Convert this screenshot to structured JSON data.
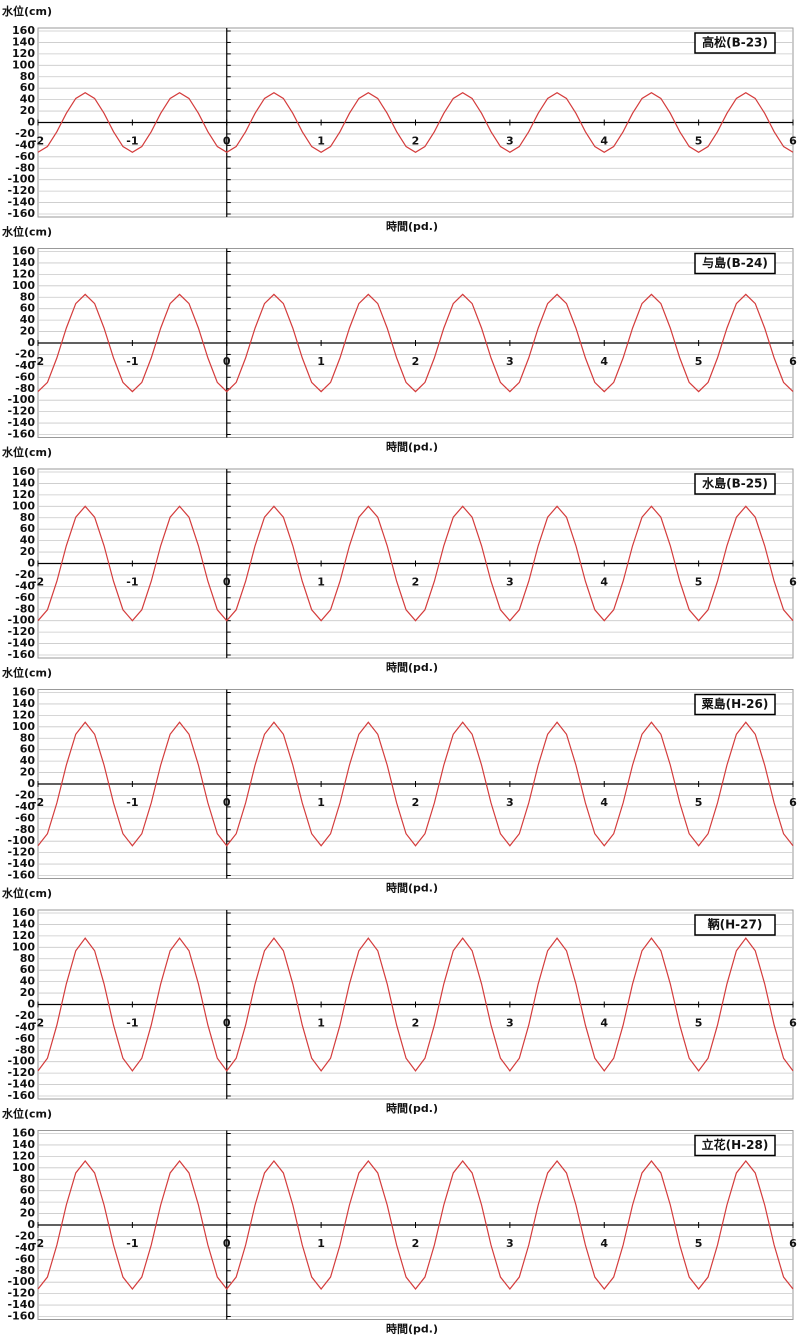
{
  "chart_data": [
    {
      "type": "line",
      "title": "高松(B-23)",
      "ylabel": "水位(cm)",
      "xlabel": "時間(pd.)",
      "xlim": [
        -2,
        6
      ],
      "xticks": [
        -2,
        -1,
        0,
        1,
        2,
        3,
        4,
        5,
        6
      ],
      "ylim": [
        -160,
        160
      ],
      "yticks": [
        160,
        140,
        120,
        100,
        80,
        60,
        40,
        20,
        0,
        -20,
        -40,
        -60,
        -80,
        -100,
        -120,
        -140,
        -160
      ],
      "grid": true,
      "x": [
        -2,
        -1.9,
        -1.8,
        -1.7,
        -1.6,
        -1.5,
        -1.4,
        -1.3,
        -1.2,
        -1.1,
        -1,
        -0.9,
        -0.8,
        -0.7,
        -0.6,
        -0.5,
        -0.4,
        -0.3,
        -0.2,
        -0.1,
        0,
        0.1,
        0.2,
        0.3,
        0.4,
        0.5,
        0.6,
        0.7,
        0.8,
        0.9,
        1,
        1.1,
        1.2,
        1.3,
        1.4,
        1.5,
        1.6,
        1.7,
        1.8,
        1.9,
        2,
        2.1,
        2.2,
        2.3,
        2.4,
        2.5,
        2.6,
        2.7,
        2.8,
        2.9,
        3,
        3.1,
        3.2,
        3.3,
        3.4,
        3.5,
        3.6,
        3.7,
        3.8,
        3.9,
        4,
        4.1,
        4.2,
        4.3,
        4.4,
        4.5,
        4.6,
        4.7,
        4.8,
        4.9,
        5,
        5.1,
        5.2,
        5.3,
        5.4,
        5.5,
        5.6,
        5.7,
        5.8,
        5.9,
        6
      ],
      "series": [
        {
          "color": "#d43c3c",
          "values": [
            -52,
            -42,
            -16,
            16,
            42,
            52,
            42,
            16,
            -16,
            -42,
            -52,
            -42,
            -16,
            16,
            42,
            52,
            42,
            16,
            -16,
            -42,
            -52,
            -42,
            -16,
            16,
            42,
            52,
            42,
            16,
            -16,
            -42,
            -52,
            -42,
            -16,
            16,
            42,
            52,
            42,
            16,
            -16,
            -42,
            -52,
            -42,
            -16,
            16,
            42,
            52,
            42,
            16,
            -16,
            -42,
            -52,
            -42,
            -16,
            16,
            42,
            52,
            42,
            16,
            -16,
            -42,
            -52,
            -42,
            -16,
            16,
            42,
            52,
            42,
            16,
            -16,
            -42,
            -52,
            -42,
            -16,
            16,
            42,
            52,
            42,
            16,
            -16,
            -42,
            -52
          ]
        }
      ]
    },
    {
      "type": "line",
      "title": "与島(B-24)",
      "ylabel": "水位(cm)",
      "xlabel": "時間(pd.)",
      "xlim": [
        -2,
        6
      ],
      "xticks": [
        -2,
        -1,
        0,
        1,
        2,
        3,
        4,
        5,
        6
      ],
      "ylim": [
        -160,
        160
      ],
      "yticks": [
        160,
        140,
        120,
        100,
        80,
        60,
        40,
        20,
        0,
        -20,
        -40,
        -60,
        -80,
        -100,
        -120,
        -140,
        -160
      ],
      "grid": true,
      "x": [
        -2,
        -1.9,
        -1.8,
        -1.7,
        -1.6,
        -1.5,
        -1.4,
        -1.3,
        -1.2,
        -1.1,
        -1,
        -0.9,
        -0.8,
        -0.7,
        -0.6,
        -0.5,
        -0.4,
        -0.3,
        -0.2,
        -0.1,
        0,
        0.1,
        0.2,
        0.3,
        0.4,
        0.5,
        0.6,
        0.7,
        0.8,
        0.9,
        1,
        1.1,
        1.2,
        1.3,
        1.4,
        1.5,
        1.6,
        1.7,
        1.8,
        1.9,
        2,
        2.1,
        2.2,
        2.3,
        2.4,
        2.5,
        2.6,
        2.7,
        2.8,
        2.9,
        3,
        3.1,
        3.2,
        3.3,
        3.4,
        3.5,
        3.6,
        3.7,
        3.8,
        3.9,
        4,
        4.1,
        4.2,
        4.3,
        4.4,
        4.5,
        4.6,
        4.7,
        4.8,
        4.9,
        5,
        5.1,
        5.2,
        5.3,
        5.4,
        5.5,
        5.6,
        5.7,
        5.8,
        5.9,
        6
      ],
      "series": [
        {
          "color": "#d43c3c",
          "values": [
            -85,
            -69,
            -26,
            26,
            69,
            85,
            69,
            26,
            -26,
            -69,
            -85,
            -69,
            -26,
            26,
            69,
            85,
            69,
            26,
            -26,
            -69,
            -85,
            -69,
            -26,
            26,
            69,
            85,
            69,
            26,
            -26,
            -69,
            -85,
            -69,
            -26,
            26,
            69,
            85,
            69,
            26,
            -26,
            -69,
            -85,
            -69,
            -26,
            26,
            69,
            85,
            69,
            26,
            -26,
            -69,
            -85,
            -69,
            -26,
            26,
            69,
            85,
            69,
            26,
            -26,
            -69,
            -85,
            -69,
            -26,
            26,
            69,
            85,
            69,
            26,
            -26,
            -69,
            -85,
            -69,
            -26,
            26,
            69,
            85,
            69,
            26,
            -26,
            -69,
            -85
          ]
        }
      ]
    },
    {
      "type": "line",
      "title": "水島(B-25)",
      "ylabel": "水位(cm)",
      "xlabel": "時間(pd.)",
      "xlim": [
        -2,
        6
      ],
      "xticks": [
        -2,
        -1,
        0,
        1,
        2,
        3,
        4,
        5,
        6
      ],
      "ylim": [
        -160,
        160
      ],
      "yticks": [
        160,
        140,
        120,
        100,
        80,
        60,
        40,
        20,
        0,
        -20,
        -40,
        -60,
        -80,
        -100,
        -120,
        -140,
        -160
      ],
      "grid": true,
      "x": [
        -2,
        -1.9,
        -1.8,
        -1.7,
        -1.6,
        -1.5,
        -1.4,
        -1.3,
        -1.2,
        -1.1,
        -1,
        -0.9,
        -0.8,
        -0.7,
        -0.6,
        -0.5,
        -0.4,
        -0.3,
        -0.2,
        -0.1,
        0,
        0.1,
        0.2,
        0.3,
        0.4,
        0.5,
        0.6,
        0.7,
        0.8,
        0.9,
        1,
        1.1,
        1.2,
        1.3,
        1.4,
        1.5,
        1.6,
        1.7,
        1.8,
        1.9,
        2,
        2.1,
        2.2,
        2.3,
        2.4,
        2.5,
        2.6,
        2.7,
        2.8,
        2.9,
        3,
        3.1,
        3.2,
        3.3,
        3.4,
        3.5,
        3.6,
        3.7,
        3.8,
        3.9,
        4,
        4.1,
        4.2,
        4.3,
        4.4,
        4.5,
        4.6,
        4.7,
        4.8,
        4.9,
        5,
        5.1,
        5.2,
        5.3,
        5.4,
        5.5,
        5.6,
        5.7,
        5.8,
        5.9,
        6
      ],
      "series": [
        {
          "color": "#d43c3c",
          "values": [
            -100,
            -81,
            -31,
            31,
            81,
            100,
            81,
            31,
            -31,
            -81,
            -100,
            -81,
            -31,
            31,
            81,
            100,
            81,
            31,
            -31,
            -81,
            -100,
            -81,
            -31,
            31,
            81,
            100,
            81,
            31,
            -31,
            -81,
            -100,
            -81,
            -31,
            31,
            81,
            100,
            81,
            31,
            -31,
            -81,
            -100,
            -81,
            -31,
            31,
            81,
            100,
            81,
            31,
            -31,
            -81,
            -100,
            -81,
            -31,
            31,
            81,
            100,
            81,
            31,
            -31,
            -81,
            -100,
            -81,
            -31,
            31,
            81,
            100,
            81,
            31,
            -31,
            -81,
            -100,
            -81,
            -31,
            31,
            81,
            100,
            81,
            31,
            -31,
            -81,
            -100
          ]
        }
      ]
    },
    {
      "type": "line",
      "title": "粟島(H-26)",
      "ylabel": "水位(cm)",
      "xlabel": "時間(pd.)",
      "xlim": [
        -2,
        6
      ],
      "xticks": [
        -2,
        -1,
        0,
        1,
        2,
        3,
        4,
        5,
        6
      ],
      "ylim": [
        -160,
        160
      ],
      "yticks": [
        160,
        140,
        120,
        100,
        80,
        60,
        40,
        20,
        0,
        -20,
        -40,
        -60,
        -80,
        -100,
        -120,
        -140,
        -160
      ],
      "grid": true,
      "x": [
        -2,
        -1.9,
        -1.8,
        -1.7,
        -1.6,
        -1.5,
        -1.4,
        -1.3,
        -1.2,
        -1.1,
        -1,
        -0.9,
        -0.8,
        -0.7,
        -0.6,
        -0.5,
        -0.4,
        -0.3,
        -0.2,
        -0.1,
        0,
        0.1,
        0.2,
        0.3,
        0.4,
        0.5,
        0.6,
        0.7,
        0.8,
        0.9,
        1,
        1.1,
        1.2,
        1.3,
        1.4,
        1.5,
        1.6,
        1.7,
        1.8,
        1.9,
        2,
        2.1,
        2.2,
        2.3,
        2.4,
        2.5,
        2.6,
        2.7,
        2.8,
        2.9,
        3,
        3.1,
        3.2,
        3.3,
        3.4,
        3.5,
        3.6,
        3.7,
        3.8,
        3.9,
        4,
        4.1,
        4.2,
        4.3,
        4.4,
        4.5,
        4.6,
        4.7,
        4.8,
        4.9,
        5,
        5.1,
        5.2,
        5.3,
        5.4,
        5.5,
        5.6,
        5.7,
        5.8,
        5.9,
        6
      ],
      "series": [
        {
          "color": "#d43c3c",
          "values": [
            -108,
            -87,
            -33,
            33,
            87,
            108,
            87,
            33,
            -33,
            -87,
            -108,
            -87,
            -33,
            33,
            87,
            108,
            87,
            33,
            -33,
            -87,
            -108,
            -87,
            -33,
            33,
            87,
            108,
            87,
            33,
            -33,
            -87,
            -108,
            -87,
            -33,
            33,
            87,
            108,
            87,
            33,
            -33,
            -87,
            -108,
            -87,
            -33,
            33,
            87,
            108,
            87,
            33,
            -33,
            -87,
            -108,
            -87,
            -33,
            33,
            87,
            108,
            87,
            33,
            -33,
            -87,
            -108,
            -87,
            -33,
            33,
            87,
            108,
            87,
            33,
            -33,
            -87,
            -108,
            -87,
            -33,
            33,
            87,
            108,
            87,
            33,
            -33,
            -87,
            -108
          ]
        }
      ]
    },
    {
      "type": "line",
      "title": "鞆(H-27)",
      "ylabel": "水位(cm)",
      "xlabel": "時間(pd.)",
      "xlim": [
        -2,
        6
      ],
      "xticks": [
        -2,
        -1,
        0,
        1,
        2,
        3,
        4,
        5,
        6
      ],
      "ylim": [
        -160,
        160
      ],
      "yticks": [
        160,
        140,
        120,
        100,
        80,
        60,
        40,
        20,
        0,
        -20,
        -40,
        -60,
        -80,
        -100,
        -120,
        -140,
        -160
      ],
      "grid": true,
      "x": [
        -2,
        -1.9,
        -1.8,
        -1.7,
        -1.6,
        -1.5,
        -1.4,
        -1.3,
        -1.2,
        -1.1,
        -1,
        -0.9,
        -0.8,
        -0.7,
        -0.6,
        -0.5,
        -0.4,
        -0.3,
        -0.2,
        -0.1,
        0,
        0.1,
        0.2,
        0.3,
        0.4,
        0.5,
        0.6,
        0.7,
        0.8,
        0.9,
        1,
        1.1,
        1.2,
        1.3,
        1.4,
        1.5,
        1.6,
        1.7,
        1.8,
        1.9,
        2,
        2.1,
        2.2,
        2.3,
        2.4,
        2.5,
        2.6,
        2.7,
        2.8,
        2.9,
        3,
        3.1,
        3.2,
        3.3,
        3.4,
        3.5,
        3.6,
        3.7,
        3.8,
        3.9,
        4,
        4.1,
        4.2,
        4.3,
        4.4,
        4.5,
        4.6,
        4.7,
        4.8,
        4.9,
        5,
        5.1,
        5.2,
        5.3,
        5.4,
        5.5,
        5.6,
        5.7,
        5.8,
        5.9,
        6
      ],
      "series": [
        {
          "color": "#d43c3c",
          "values": [
            -116,
            -94,
            -36,
            36,
            94,
            116,
            94,
            36,
            -36,
            -94,
            -116,
            -94,
            -36,
            36,
            94,
            116,
            94,
            36,
            -36,
            -94,
            -116,
            -94,
            -36,
            36,
            94,
            116,
            94,
            36,
            -36,
            -94,
            -116,
            -94,
            -36,
            36,
            94,
            116,
            94,
            36,
            -36,
            -94,
            -116,
            -94,
            -36,
            36,
            94,
            116,
            94,
            36,
            -36,
            -94,
            -116,
            -94,
            -36,
            36,
            94,
            116,
            94,
            36,
            -36,
            -94,
            -116,
            -94,
            -36,
            36,
            94,
            116,
            94,
            36,
            -36,
            -94,
            -116,
            -94,
            -36,
            36,
            94,
            116,
            94,
            36,
            -36,
            -94,
            -116
          ]
        }
      ]
    },
    {
      "type": "line",
      "title": "立花(H-28)",
      "ylabel": "水位(cm)",
      "xlabel": "時間(pd.)",
      "xlim": [
        -2,
        6
      ],
      "xticks": [
        -2,
        -1,
        0,
        1,
        2,
        3,
        4,
        5,
        6
      ],
      "ylim": [
        -160,
        160
      ],
      "yticks": [
        160,
        140,
        120,
        100,
        80,
        60,
        40,
        20,
        0,
        -20,
        -40,
        -60,
        -80,
        -100,
        -120,
        -140,
        -160
      ],
      "grid": true,
      "x": [
        -2,
        -1.9,
        -1.8,
        -1.7,
        -1.6,
        -1.5,
        -1.4,
        -1.3,
        -1.2,
        -1.1,
        -1,
        -0.9,
        -0.8,
        -0.7,
        -0.6,
        -0.5,
        -0.4,
        -0.3,
        -0.2,
        -0.1,
        0,
        0.1,
        0.2,
        0.3,
        0.4,
        0.5,
        0.6,
        0.7,
        0.8,
        0.9,
        1,
        1.1,
        1.2,
        1.3,
        1.4,
        1.5,
        1.6,
        1.7,
        1.8,
        1.9,
        2,
        2.1,
        2.2,
        2.3,
        2.4,
        2.5,
        2.6,
        2.7,
        2.8,
        2.9,
        3,
        3.1,
        3.2,
        3.3,
        3.4,
        3.5,
        3.6,
        3.7,
        3.8,
        3.9,
        4,
        4.1,
        4.2,
        4.3,
        4.4,
        4.5,
        4.6,
        4.7,
        4.8,
        4.9,
        5,
        5.1,
        5.2,
        5.3,
        5.4,
        5.5,
        5.6,
        5.7,
        5.8,
        5.9,
        6
      ],
      "series": [
        {
          "color": "#d43c3c",
          "values": [
            -112,
            -91,
            -35,
            35,
            91,
            112,
            91,
            35,
            -35,
            -91,
            -112,
            -91,
            -35,
            35,
            91,
            112,
            91,
            35,
            -35,
            -91,
            -112,
            -91,
            -35,
            35,
            91,
            112,
            91,
            35,
            -35,
            -91,
            -112,
            -91,
            -35,
            35,
            91,
            112,
            91,
            35,
            -35,
            -91,
            -112,
            -91,
            -35,
            35,
            91,
            112,
            91,
            35,
            -35,
            -91,
            -112,
            -91,
            -35,
            35,
            91,
            112,
            91,
            35,
            -35,
            -91,
            -112,
            -91,
            -35,
            35,
            91,
            112,
            91,
            35,
            -35,
            -91,
            -112,
            -91,
            -35,
            35,
            91,
            112,
            91,
            35,
            -35,
            -91,
            -112
          ]
        }
      ]
    }
  ]
}
